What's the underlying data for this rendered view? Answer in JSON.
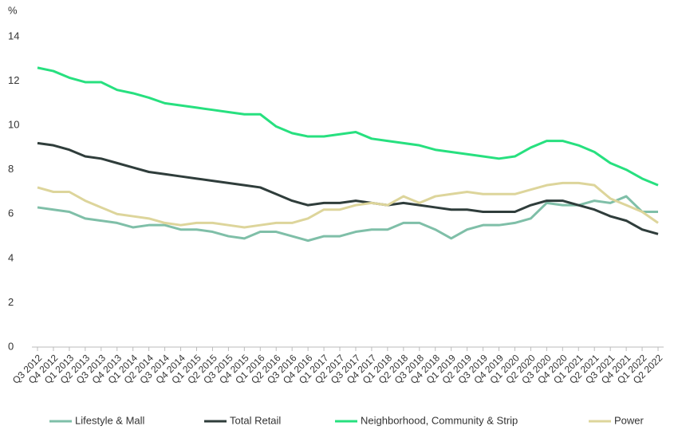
{
  "chart_data": {
    "type": "line",
    "y_label": "%",
    "categories": [
      "Q3 2012",
      "Q4 2012",
      "Q1 2013",
      "Q2 2013",
      "Q3 2013",
      "Q4 2013",
      "Q1 2014",
      "Q2 2014",
      "Q3 2014",
      "Q4 2014",
      "Q1 2015",
      "Q2 2015",
      "Q3 2015",
      "Q4 2015",
      "Q1 2016",
      "Q2 2016",
      "Q3 2016",
      "Q4 2016",
      "Q1 2017",
      "Q2 2017",
      "Q3 2017",
      "Q4 2017",
      "Q1 2018",
      "Q2 2018",
      "Q3 2018",
      "Q4 2018",
      "Q1 2019",
      "Q2 2019",
      "Q3 2019",
      "Q4 2019",
      "Q1 2020",
      "Q2 2020",
      "Q3 2020",
      "Q4 2020",
      "Q1 2021",
      "Q2 2021",
      "Q3 2021",
      "Q4 2021",
      "Q1 2022",
      "Q2 2022"
    ],
    "series": [
      {
        "name": "Lifestyle & Mall",
        "color": "#7fbfa8",
        "values": [
          6.3,
          6.2,
          6.1,
          5.8,
          5.7,
          5.6,
          5.4,
          5.5,
          5.5,
          5.3,
          5.3,
          5.2,
          5.0,
          4.9,
          5.2,
          5.2,
          5.0,
          4.8,
          5.0,
          5.0,
          5.2,
          5.3,
          5.3,
          5.6,
          5.6,
          5.3,
          4.9,
          5.3,
          5.5,
          5.5,
          5.6,
          5.8,
          6.5,
          6.4,
          6.4,
          6.6,
          6.5,
          6.8,
          6.1,
          6.1
        ]
      },
      {
        "name": "Total Retail",
        "color": "#2f3d3b",
        "values": [
          9.2,
          9.1,
          8.9,
          8.6,
          8.5,
          8.3,
          8.1,
          7.9,
          7.8,
          7.7,
          7.6,
          7.5,
          7.4,
          7.3,
          7.2,
          6.9,
          6.6,
          6.4,
          6.5,
          6.5,
          6.6,
          6.5,
          6.4,
          6.5,
          6.4,
          6.3,
          6.2,
          6.2,
          6.1,
          6.1,
          6.1,
          6.4,
          6.6,
          6.6,
          6.4,
          6.2,
          5.9,
          5.7,
          5.3,
          5.1
        ]
      },
      {
        "name": "Neighborhood, Community & Strip",
        "color": "#27e07f",
        "values": [
          12.6,
          12.45,
          12.15,
          11.95,
          11.95,
          11.6,
          11.45,
          11.25,
          11.0,
          10.9,
          10.8,
          10.7,
          10.6,
          10.5,
          10.5,
          9.95,
          9.65,
          9.5,
          9.5,
          9.6,
          9.7,
          9.4,
          9.3,
          9.2,
          9.1,
          8.9,
          8.8,
          8.7,
          8.6,
          8.5,
          8.6,
          9.0,
          9.3,
          9.3,
          9.1,
          8.8,
          8.3,
          8.0,
          7.6,
          7.3
        ]
      },
      {
        "name": "Power",
        "color": "#ddd59b",
        "values": [
          7.2,
          7.0,
          7.0,
          6.6,
          6.3,
          6.0,
          5.9,
          5.8,
          5.6,
          5.5,
          5.6,
          5.6,
          5.5,
          5.4,
          5.5,
          5.6,
          5.6,
          5.8,
          6.2,
          6.2,
          6.4,
          6.5,
          6.4,
          6.8,
          6.5,
          6.8,
          6.9,
          7.0,
          6.9,
          6.9,
          6.9,
          7.1,
          7.3,
          7.4,
          7.4,
          7.3,
          6.7,
          6.4,
          6.1,
          5.6
        ]
      }
    ],
    "ylim": [
      0,
      14
    ],
    "yticks": [
      0,
      2,
      4,
      6,
      8,
      10,
      12,
      14
    ],
    "grid": false,
    "legend": "bottom"
  }
}
